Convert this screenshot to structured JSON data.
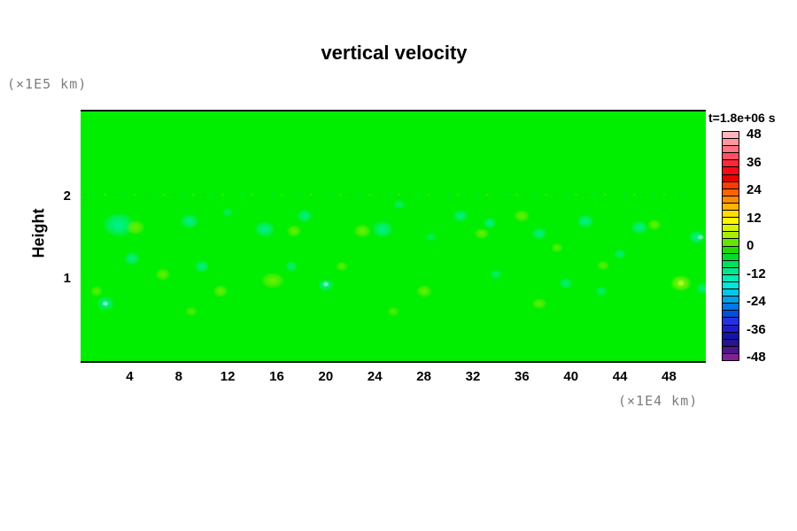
{
  "title": "vertical velocity",
  "axes": {
    "x": {
      "unit_label": "(×1E4 km)",
      "ticks": [
        4,
        8,
        12,
        16,
        20,
        24,
        28,
        32,
        36,
        40,
        44,
        48
      ],
      "range": [
        0,
        51
      ]
    },
    "y": {
      "label": "Height",
      "unit_label": "(×1E5 km)",
      "ticks": [
        1,
        2
      ],
      "range": [
        0,
        3.03
      ]
    }
  },
  "colorbar": {
    "title": "t=1.8e+06 s",
    "ticks": [
      48,
      36,
      24,
      12,
      0,
      -12,
      -24,
      -36,
      -48
    ],
    "segments": [
      "#ffb4be",
      "#ff96a0",
      "#ff7382",
      "#ff5064",
      "#ff2837",
      "#fa0a14",
      "#e60000",
      "#ff3c00",
      "#ff6400",
      "#ff8c00",
      "#ffb400",
      "#ffdc00",
      "#fff500",
      "#d7f500",
      "#a5f000",
      "#64e600",
      "#1edc00",
      "#00dc28",
      "#00e05a",
      "#00e68c",
      "#00ecb4",
      "#00e6dc",
      "#00c8e6",
      "#00a0e6",
      "#0078e6",
      "#0050dc",
      "#2832dc",
      "#1e1ec8",
      "#1414aa",
      "#28148c",
      "#50148c",
      "#821e96"
    ]
  },
  "chart_data": {
    "type": "heatmap",
    "field": "vertical velocity",
    "time_label": "t=1.8e+06 s",
    "x_range_1e4_km": [
      0,
      51
    ],
    "y_range_1e5_km": [
      0,
      3.03
    ],
    "colorbar_range": [
      -48,
      48
    ],
    "background_value": 0,
    "base_color": "#00ee00",
    "blobs": [
      {
        "x": 3.1,
        "y": 1.66,
        "rx": 26,
        "ry": 20,
        "c": "#00f0a8",
        "a": 0.9,
        "v": -9
      },
      {
        "x": 2.0,
        "y": 0.7,
        "rx": 14,
        "ry": 12,
        "c": "#00f0a8",
        "a": 0.9,
        "v": -9
      },
      {
        "x": 4.2,
        "y": 1.25,
        "rx": 13,
        "ry": 11,
        "c": "#00f0a8",
        "a": 0.8,
        "v": -6
      },
      {
        "x": 8.9,
        "y": 1.7,
        "rx": 15,
        "ry": 12,
        "c": "#00f0a8",
        "a": 0.85,
        "v": -8
      },
      {
        "x": 9.9,
        "y": 1.15,
        "rx": 12,
        "ry": 10,
        "c": "#00f0a8",
        "a": 0.8,
        "v": -6
      },
      {
        "x": 15.0,
        "y": 1.6,
        "rx": 17,
        "ry": 13,
        "c": "#00f0a8",
        "a": 0.85,
        "v": -8
      },
      {
        "x": 18.3,
        "y": 1.76,
        "rx": 13,
        "ry": 11,
        "c": "#00f0a8",
        "a": 0.8,
        "v": -7
      },
      {
        "x": 17.2,
        "y": 1.15,
        "rx": 10,
        "ry": 9,
        "c": "#00f0a8",
        "a": 0.7,
        "v": -5
      },
      {
        "x": 20.0,
        "y": 0.92,
        "rx": 13,
        "ry": 10,
        "c": "#00f0a8",
        "a": 0.9,
        "v": -10
      },
      {
        "x": 24.6,
        "y": 1.6,
        "rx": 17,
        "ry": 14,
        "c": "#00f0a8",
        "a": 0.85,
        "v": -8
      },
      {
        "x": 26.0,
        "y": 1.9,
        "rx": 10,
        "ry": 8,
        "c": "#00f0a8",
        "a": 0.6,
        "v": -4
      },
      {
        "x": 31.0,
        "y": 1.76,
        "rx": 13,
        "ry": 10,
        "c": "#00f0a8",
        "a": 0.8,
        "v": -7
      },
      {
        "x": 33.4,
        "y": 1.68,
        "rx": 11,
        "ry": 9,
        "c": "#00f0a8",
        "a": 0.8,
        "v": -7
      },
      {
        "x": 33.9,
        "y": 1.05,
        "rx": 10,
        "ry": 8,
        "c": "#00f0a8",
        "a": 0.7,
        "v": -5
      },
      {
        "x": 37.4,
        "y": 1.55,
        "rx": 13,
        "ry": 10,
        "c": "#00f0a8",
        "a": 0.8,
        "v": -7
      },
      {
        "x": 39.6,
        "y": 0.95,
        "rx": 11,
        "ry": 9,
        "c": "#00f0a8",
        "a": 0.75,
        "v": -6
      },
      {
        "x": 41.2,
        "y": 1.7,
        "rx": 14,
        "ry": 11,
        "c": "#00f0a8",
        "a": 0.85,
        "v": -8
      },
      {
        "x": 45.6,
        "y": 1.62,
        "rx": 14,
        "ry": 11,
        "c": "#00f0a8",
        "a": 0.85,
        "v": -8
      },
      {
        "x": 44.0,
        "y": 1.3,
        "rx": 10,
        "ry": 8,
        "c": "#00f0a8",
        "a": 0.7,
        "v": -5
      },
      {
        "x": 50.3,
        "y": 1.5,
        "rx": 13,
        "ry": 11,
        "c": "#00f0a8",
        "a": 0.9,
        "v": -10
      },
      {
        "x": 50.8,
        "y": 0.88,
        "rx": 11,
        "ry": 9,
        "c": "#00f0a8",
        "a": 0.8,
        "v": -7
      },
      {
        "x": 42.5,
        "y": 0.85,
        "rx": 10,
        "ry": 8,
        "c": "#00f0a8",
        "a": 0.7,
        "v": -5
      },
      {
        "x": 28.6,
        "y": 1.5,
        "rx": 9,
        "ry": 7,
        "c": "#00f0a8",
        "a": 0.6,
        "v": -4
      },
      {
        "x": 12.0,
        "y": 1.8,
        "rx": 9,
        "ry": 7,
        "c": "#00f0a8",
        "a": 0.6,
        "v": -4
      },
      {
        "x": 2.0,
        "y": 0.7,
        "rx": 5,
        "ry": 4,
        "c": "#c8ffe8",
        "a": 0.9,
        "v": -14
      },
      {
        "x": 20.0,
        "y": 0.93,
        "rx": 5,
        "ry": 4,
        "c": "#c8ffe8",
        "a": 0.9,
        "v": -14
      },
      {
        "x": 50.6,
        "y": 1.5,
        "rx": 5,
        "ry": 4,
        "c": "#c8ffe8",
        "a": 0.9,
        "v": -14
      },
      {
        "x": 4.5,
        "y": 1.62,
        "rx": 15,
        "ry": 12,
        "c": "#82f000",
        "a": 0.85,
        "v": 8
      },
      {
        "x": 1.3,
        "y": 0.85,
        "rx": 10,
        "ry": 9,
        "c": "#82f000",
        "a": 0.7,
        "v": 6
      },
      {
        "x": 6.7,
        "y": 1.05,
        "rx": 12,
        "ry": 10,
        "c": "#82f000",
        "a": 0.8,
        "v": 7
      },
      {
        "x": 11.4,
        "y": 0.85,
        "rx": 12,
        "ry": 10,
        "c": "#82f000",
        "a": 0.8,
        "v": 7
      },
      {
        "x": 15.7,
        "y": 0.98,
        "rx": 19,
        "ry": 13,
        "c": "#82f000",
        "a": 0.85,
        "v": 8
      },
      {
        "x": 17.4,
        "y": 1.58,
        "rx": 12,
        "ry": 10,
        "c": "#82f000",
        "a": 0.8,
        "v": 7
      },
      {
        "x": 23.0,
        "y": 1.58,
        "rx": 14,
        "ry": 11,
        "c": "#82f000",
        "a": 0.85,
        "v": 8
      },
      {
        "x": 21.3,
        "y": 1.15,
        "rx": 10,
        "ry": 8,
        "c": "#82f000",
        "a": 0.7,
        "v": 5
      },
      {
        "x": 28.0,
        "y": 0.85,
        "rx": 13,
        "ry": 10,
        "c": "#82f000",
        "a": 0.8,
        "v": 7
      },
      {
        "x": 32.7,
        "y": 1.55,
        "rx": 12,
        "ry": 9,
        "c": "#82f000",
        "a": 0.8,
        "v": 7
      },
      {
        "x": 36.0,
        "y": 1.76,
        "rx": 13,
        "ry": 10,
        "c": "#82f000",
        "a": 0.8,
        "v": 7
      },
      {
        "x": 38.9,
        "y": 1.38,
        "rx": 10,
        "ry": 8,
        "c": "#82f000",
        "a": 0.7,
        "v": 5
      },
      {
        "x": 37.4,
        "y": 0.7,
        "rx": 12,
        "ry": 9,
        "c": "#82f000",
        "a": 0.75,
        "v": 6
      },
      {
        "x": 46.8,
        "y": 1.66,
        "rx": 11,
        "ry": 9,
        "c": "#82f000",
        "a": 0.8,
        "v": 7
      },
      {
        "x": 49.0,
        "y": 0.95,
        "rx": 17,
        "ry": 13,
        "c": "#96f500",
        "a": 0.95,
        "v": 12
      },
      {
        "x": 49.0,
        "y": 0.95,
        "rx": 6,
        "ry": 5,
        "c": "#c8ff50",
        "a": 0.95,
        "v": 15
      },
      {
        "x": 42.6,
        "y": 1.16,
        "rx": 10,
        "ry": 8,
        "c": "#82f000",
        "a": 0.7,
        "v": 5
      },
      {
        "x": 9.0,
        "y": 0.6,
        "rx": 10,
        "ry": 8,
        "c": "#82f000",
        "a": 0.6,
        "v": 4
      },
      {
        "x": 25.5,
        "y": 0.6,
        "rx": 10,
        "ry": 8,
        "c": "#82f000",
        "a": 0.6,
        "v": 4
      }
    ],
    "speckle_row": {
      "y": 2.02,
      "x_start": 0.4,
      "x_step": 0.8,
      "count": 62,
      "r": 2.3,
      "colors": [
        "#17d400",
        "#00e09a",
        "#58e800"
      ]
    }
  }
}
